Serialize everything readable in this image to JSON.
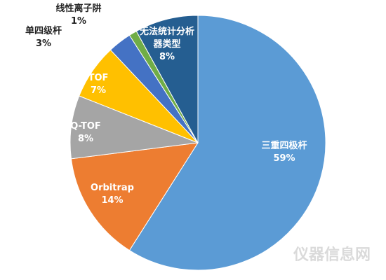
{
  "chart_data": {
    "type": "pie",
    "categories": [
      "三重四极杆",
      "Orbitrap",
      "Q-TOF",
      "TOF",
      "单四级杆",
      "线性离子阱",
      "无法统计分析器类型"
    ],
    "values": [
      59,
      14,
      8,
      7,
      3,
      1,
      8
    ],
    "value_labels": [
      "59%",
      "14%",
      "8%",
      "7%",
      "3%",
      "1%",
      "8%"
    ],
    "colors": [
      "#5b9bd5",
      "#ed7d31",
      "#a5a5a5",
      "#ffc000",
      "#4472c4",
      "#70ad47",
      "#255e91"
    ],
    "start_angle": 0,
    "direction": "clockwise"
  },
  "watermark": "仪器信息网"
}
